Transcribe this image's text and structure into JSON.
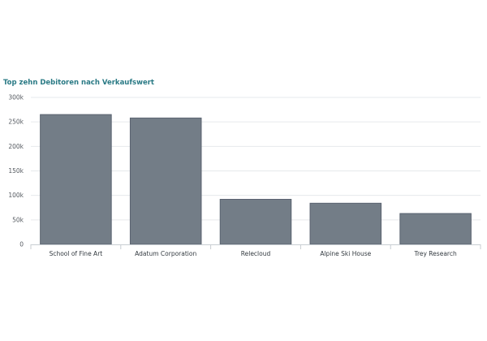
{
  "chart_data": {
    "type": "bar",
    "title": "Top zehn Debitoren nach Verkaufswert",
    "xlabel": "",
    "ylabel": "",
    "categories": [
      "School of Fine Art",
      "Adatum Corporation",
      "Relecloud",
      "Alpine Ski House",
      "Trey Research"
    ],
    "values": [
      265000,
      258000,
      92000,
      84000,
      63000
    ],
    "ylim": [
      0,
      300000
    ],
    "yticks": [
      0,
      50000,
      100000,
      150000,
      200000,
      250000,
      300000
    ],
    "ytick_labels": [
      "0",
      "50k",
      "100k",
      "150k",
      "200k",
      "250k",
      "300k"
    ],
    "grid": true,
    "legend": "none",
    "bar_color": "#737d87",
    "bar_edge_color": "#5a6370",
    "grid_color": "#e6e9ec",
    "title_color": "#2a7a85"
  }
}
